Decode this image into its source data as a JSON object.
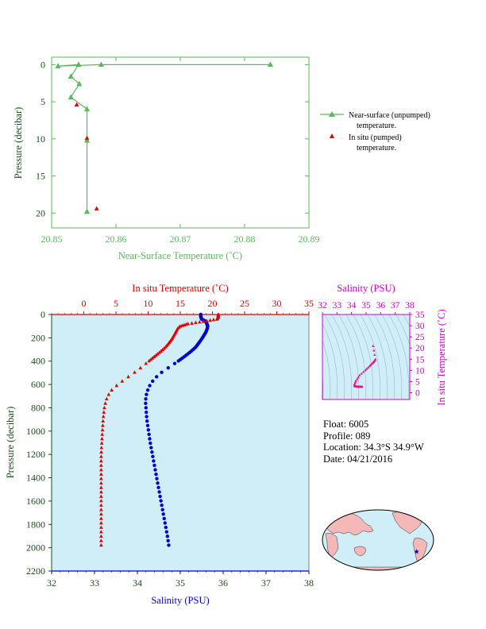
{
  "float_info": {
    "float": "Float:  6005",
    "profile": "Profile:  089",
    "location": "Location:  34.3°S  34.9°W",
    "date": "Date:  04/21/2016"
  },
  "colors": {
    "green": "#5cb85c",
    "red": "#dd0000",
    "blue": "#0000cc",
    "magenta": "#cc00cc",
    "pink": "#ee1188",
    "panel_bg": "#cfeef7",
    "map_land": "#f4b8b8",
    "map_ocean": "#cfeef7",
    "axis_text": "#1a4d1a"
  },
  "chart_data": [
    {
      "type": "line",
      "name": "near-surface",
      "xlabel": "Near-Surface Temperature (˚C)",
      "ylabel": "Pressure (decibar)",
      "xlim": [
        20.85,
        20.89
      ],
      "ylim": [
        22,
        -1
      ],
      "xticks": [
        "20.85",
        "20.86",
        "20.87",
        "20.88",
        "20.89"
      ],
      "yticks": [
        "0",
        "5",
        "10",
        "15",
        "20"
      ],
      "series": [
        {
          "name": "Near-surface (unpumped) temperature.",
          "marker": "triangle",
          "x": [
            20.884,
            20.8577,
            20.851,
            20.8542,
            20.853,
            20.8543,
            20.853,
            20.8555,
            20.8555,
            20.8555
          ],
          "y": [
            0.0,
            0.0,
            0.2,
            0.0,
            1.6,
            2.6,
            4.4,
            6.0,
            10.2,
            19.8
          ]
        },
        {
          "name": "In situ (pumped) temperature.",
          "marker": "triangle",
          "x": [
            20.8539,
            20.8555,
            20.857
          ],
          "y": [
            5.4,
            9.9,
            19.4
          ]
        }
      ],
      "legend": [
        {
          "line1": "Near-surface (unpumped)",
          "line2": "temperature."
        },
        {
          "line1": "In situ (pumped)",
          "line2": "temperature."
        }
      ]
    },
    {
      "type": "scatter",
      "name": "profile",
      "top_xlabel": "In situ Temperature (˚C)",
      "bottom_xlabel": "Salinity (PSU)",
      "ylabel": "Pressure (decibar)",
      "temperature_lim": [
        -5,
        35
      ],
      "salinity_lim": [
        32,
        38
      ],
      "ylim": [
        0,
        2200
      ],
      "temperature_ticks": [
        "0",
        "5",
        "10",
        "15",
        "20",
        "25",
        "30",
        "35"
      ],
      "salinity_ticks": [
        "32",
        "33",
        "34",
        "35",
        "36",
        "37",
        "38"
      ],
      "pressure_ticks": [
        "0",
        "200",
        "400",
        "600",
        "800",
        "1000",
        "1200",
        "1400",
        "1600",
        "1800",
        "2000",
        "2200"
      ],
      "temperature_profile": {
        "pressure": [
          0,
          20,
          40,
          60,
          80,
          100,
          120,
          150,
          180,
          210,
          240,
          280,
          320,
          360,
          400,
          450,
          500,
          550,
          600,
          650,
          700,
          750,
          800,
          900,
          1000,
          1100,
          1200,
          1300,
          1400,
          1500,
          1600,
          1700,
          1800,
          1900,
          2000
        ],
        "temperature": [
          20.9,
          20.9,
          20.7,
          18.6,
          16.2,
          15.0,
          14.6,
          14.3,
          14.0,
          13.7,
          13.3,
          12.7,
          11.9,
          11.0,
          10.1,
          9.0,
          7.8,
          6.5,
          5.3,
          4.3,
          3.7,
          3.4,
          3.2,
          3.0,
          2.9,
          2.8,
          2.7,
          2.7,
          2.7,
          2.7,
          2.7,
          2.7,
          2.7,
          2.7,
          2.7
        ]
      },
      "salinity_profile": {
        "pressure": [
          0,
          20,
          40,
          60,
          80,
          100,
          120,
          150,
          180,
          210,
          240,
          280,
          320,
          360,
          400,
          450,
          500,
          550,
          600,
          650,
          700,
          750,
          800,
          900,
          1000,
          1100,
          1200,
          1300,
          1400,
          1500,
          1600,
          1700,
          1800,
          1900,
          2000
        ],
        "salinity": [
          35.48,
          35.48,
          35.5,
          35.6,
          35.62,
          35.64,
          35.63,
          35.6,
          35.55,
          35.5,
          35.44,
          35.36,
          35.24,
          35.1,
          34.95,
          34.75,
          34.55,
          34.4,
          34.3,
          34.24,
          34.2,
          34.19,
          34.2,
          34.22,
          34.26,
          34.3,
          34.35,
          34.4,
          34.45,
          34.5,
          34.55,
          34.6,
          34.65,
          34.7,
          34.74
        ]
      }
    },
    {
      "type": "scatter",
      "name": "ts-diagram",
      "top_xlabel": "Salinity (PSU)",
      "ylabel": "In situ Temperature (˚C)",
      "xlim": [
        32,
        38
      ],
      "ylim": [
        -3,
        35
      ],
      "xticks": [
        "32",
        "33",
        "34",
        "35",
        "36",
        "37",
        "38"
      ],
      "yticks": [
        "0",
        "5",
        "10",
        "15",
        "20",
        "25",
        "30",
        "35"
      ],
      "salinity": [
        35.48,
        35.64,
        35.55,
        35.44,
        35.24,
        34.95,
        34.55,
        34.3,
        34.2,
        34.22,
        34.3,
        34.4,
        34.5,
        34.6,
        34.74
      ],
      "temperature": [
        20.9,
        15.0,
        14.0,
        13.3,
        11.9,
        10.1,
        7.8,
        5.3,
        3.7,
        3.0,
        2.8,
        2.7,
        2.7,
        2.7,
        2.7
      ]
    }
  ],
  "map": {
    "marker_lat": -34.3,
    "marker_lon": -34.9
  }
}
